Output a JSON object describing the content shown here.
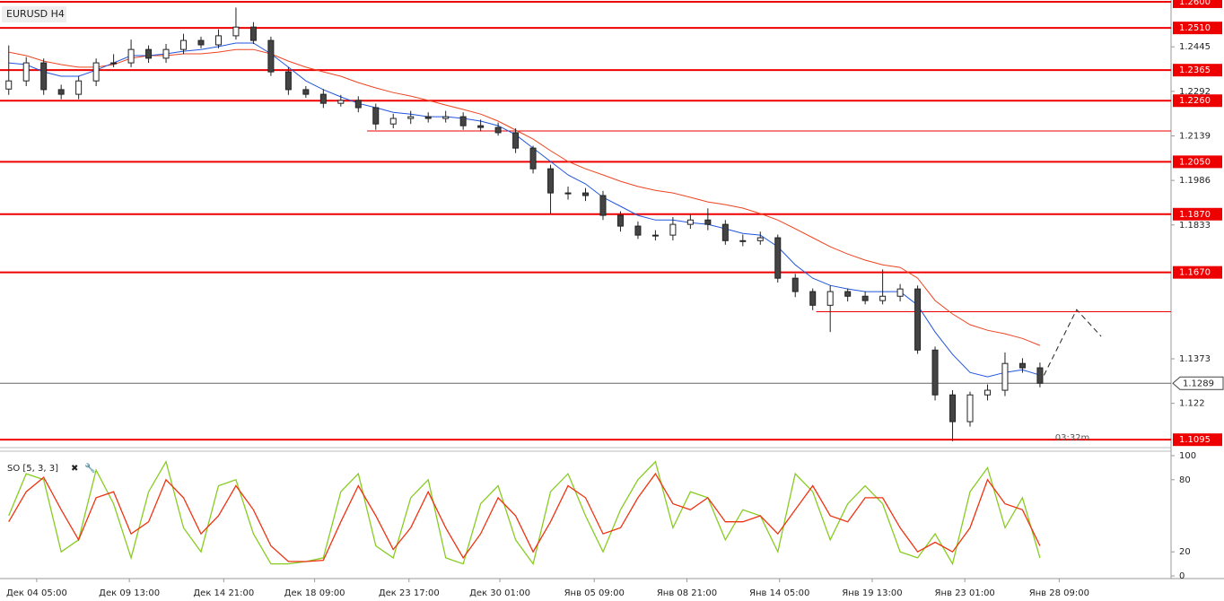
{
  "chart_data": {
    "type": "candlestick",
    "title": "EURUSD H4",
    "x": [
      0,
      1,
      2,
      3,
      4,
      5,
      6,
      7,
      8,
      9,
      10,
      11,
      12,
      13,
      14,
      15,
      16,
      17,
      18,
      19,
      20,
      21,
      22,
      23,
      24,
      25,
      26,
      27,
      28,
      29,
      30,
      31,
      32,
      33,
      34,
      35,
      36,
      37,
      38,
      39,
      40,
      41,
      42,
      43,
      44,
      45,
      46,
      47,
      48,
      49,
      50,
      51,
      52,
      53,
      54,
      55,
      56,
      57,
      58,
      59
    ],
    "open": [
      1.23,
      1.2328,
      1.239,
      1.2298,
      1.2282,
      1.2328,
      1.239,
      1.239,
      1.2436,
      1.2406,
      1.2436,
      1.2467,
      1.2452,
      1.2483,
      1.2513,
      1.2467,
      1.2359,
      1.2298,
      1.2282,
      1.2251,
      1.2261,
      1.2236,
      1.218,
      1.2199,
      1.2205,
      1.2199,
      1.2205,
      1.2174,
      1.2168,
      1.215,
      1.2097,
      1.2026,
      1.1943,
      1.1943,
      1.1934,
      1.1866,
      1.1829,
      1.1798,
      1.1798,
      1.1835,
      1.185,
      1.1835,
      1.1779,
      1.1779,
      1.1789,
      1.165,
      1.1604,
      1.1557,
      1.1604,
      1.1588,
      1.1573,
      1.1588,
      1.1613,
      1.1403,
      1.1249,
      1.1157,
      1.1249,
      1.1265,
      1.1357,
      1.1342
    ],
    "high": [
      1.245,
      1.241,
      1.2405,
      1.2315,
      1.2345,
      1.2405,
      1.242,
      1.247,
      1.245,
      1.2455,
      1.249,
      1.248,
      1.2505,
      1.258,
      1.253,
      1.248,
      1.2375,
      1.231,
      1.23,
      1.228,
      1.2275,
      1.225,
      1.2215,
      1.2225,
      1.222,
      1.2225,
      1.222,
      1.2195,
      1.2185,
      1.2165,
      1.2105,
      1.204,
      1.1965,
      1.196,
      1.195,
      1.188,
      1.1845,
      1.1815,
      1.186,
      1.187,
      1.189,
      1.185,
      1.18,
      1.181,
      1.18,
      1.1665,
      1.1615,
      1.1625,
      1.1615,
      1.1605,
      1.168,
      1.163,
      1.1625,
      1.1415,
      1.1265,
      1.126,
      1.1285,
      1.1395,
      1.1375,
      1.136
    ],
    "low": [
      1.228,
      1.231,
      1.228,
      1.2265,
      1.2265,
      1.231,
      1.2375,
      1.2375,
      1.239,
      1.239,
      1.242,
      1.244,
      1.244,
      1.247,
      1.2455,
      1.2345,
      1.228,
      1.227,
      1.2235,
      1.224,
      1.222,
      1.216,
      1.2165,
      1.218,
      1.2185,
      1.2185,
      1.216,
      1.2155,
      1.214,
      1.208,
      1.201,
      1.187,
      1.192,
      1.1915,
      1.185,
      1.181,
      1.1785,
      1.178,
      1.178,
      1.182,
      1.1815,
      1.1765,
      1.176,
      1.1765,
      1.1635,
      1.1585,
      1.154,
      1.1465,
      1.157,
      1.156,
      1.156,
      1.157,
      1.139,
      1.123,
      1.109,
      1.114,
      1.123,
      1.1245,
      1.1325,
      1.1275
    ],
    "close": [
      1.2328,
      1.239,
      1.2298,
      1.2282,
      1.2328,
      1.239,
      1.239,
      1.2436,
      1.2406,
      1.2436,
      1.2467,
      1.2452,
      1.2483,
      1.2513,
      1.2467,
      1.2359,
      1.2298,
      1.2282,
      1.2251,
      1.2261,
      1.2236,
      1.218,
      1.2199,
      1.2205,
      1.2199,
      1.2205,
      1.2174,
      1.2168,
      1.215,
      1.2097,
      1.2026,
      1.1943,
      1.1943,
      1.1934,
      1.1866,
      1.1829,
      1.1798,
      1.1798,
      1.1835,
      1.185,
      1.1835,
      1.1779,
      1.1779,
      1.1789,
      1.165,
      1.1604,
      1.1557,
      1.1604,
      1.1588,
      1.1573,
      1.1588,
      1.1613,
      1.1403,
      1.1249,
      1.1157,
      1.1249,
      1.1265,
      1.1357,
      1.1342,
      1.1289
    ],
    "ma_fast": {
      "color": "#2255dd",
      "values": [
        1.239,
        1.2384,
        1.2359,
        1.2344,
        1.2344,
        1.2365,
        1.239,
        1.2415,
        1.2415,
        1.2421,
        1.243,
        1.2436,
        1.2446,
        1.2458,
        1.2458,
        1.2421,
        1.2375,
        1.2328,
        1.2298,
        1.2273,
        1.2251,
        1.2236,
        1.222,
        1.2214,
        1.2205,
        1.2205,
        1.2199,
        1.219,
        1.2174,
        1.2143,
        1.2097,
        1.2051,
        1.2005,
        1.1974,
        1.1928,
        1.1897,
        1.1866,
        1.185,
        1.185,
        1.1841,
        1.1835,
        1.182,
        1.1804,
        1.1798,
        1.1758,
        1.1696,
        1.165,
        1.1625,
        1.1613,
        1.1604,
        1.1604,
        1.1604,
        1.1557,
        1.1465,
        1.1388,
        1.1326,
        1.1311,
        1.1326,
        1.1335,
        1.1317
      ]
    },
    "ma_slow": {
      "color": "#ee4422",
      "values": [
        1.2427,
        1.2415,
        1.2396,
        1.2384,
        1.2375,
        1.2375,
        1.2384,
        1.2406,
        1.2415,
        1.2415,
        1.2421,
        1.2421,
        1.2427,
        1.2436,
        1.2436,
        1.2421,
        1.2396,
        1.2375,
        1.2359,
        1.2344,
        1.2322,
        1.2304,
        1.2288,
        1.2276,
        1.2261,
        1.2245,
        1.223,
        1.2214,
        1.219,
        1.2159,
        1.2128,
        1.2088,
        1.2051,
        1.2026,
        1.2005,
        1.1983,
        1.1965,
        1.1952,
        1.1943,
        1.1928,
        1.1912,
        1.1903,
        1.1891,
        1.1872,
        1.185,
        1.182,
        1.1789,
        1.1758,
        1.1733,
        1.1712,
        1.1696,
        1.1687,
        1.165,
        1.1573,
        1.1527,
        1.149,
        1.1471,
        1.1459,
        1.1443,
        1.1419
      ]
    },
    "forecast": {
      "x": [
        59,
        61.1,
        62.5
      ],
      "values": [
        1.1289,
        1.1542,
        1.145
      ]
    },
    "levels": [
      {
        "value": 1.26,
        "label": "1.2600"
      },
      {
        "value": 1.251,
        "label": "1.2510"
      },
      {
        "value": 1.2365,
        "label": "1.2365"
      },
      {
        "value": 1.226,
        "label": "1.2260"
      },
      {
        "value": 1.205,
        "label": "1.2050"
      },
      {
        "value": 1.187,
        "label": "1.1870"
      },
      {
        "value": 1.167,
        "label": "1.1670"
      },
      {
        "value": 1.1095,
        "label": "1.1095"
      }
    ],
    "short_levels": [
      {
        "value": 1.2156,
        "from": 20.5
      },
      {
        "value": 1.1535,
        "from": 46.2
      }
    ],
    "current_price": 1.1289,
    "timer": "03:32m",
    "xlim": [
      -0.5,
      66.5
    ],
    "ylim": [
      1.1074,
      1.2606
    ],
    "yticks": [
      1.2445,
      1.2292,
      1.2139,
      1.1986,
      1.1833,
      1.1373,
      1.122
    ],
    "xticks": [
      {
        "value": 1.6,
        "label": "Дек 04 05:00"
      },
      {
        "value": 6.9,
        "label": "Дек 09 13:00"
      },
      {
        "value": 12.3,
        "label": "Дек 14 21:00"
      },
      {
        "value": 17.5,
        "label": "Дек 18 09:00"
      },
      {
        "value": 22.9,
        "label": "Дек 23 17:00"
      },
      {
        "value": 28.1,
        "label": "Дек 30 01:00"
      },
      {
        "value": 33.5,
        "label": "Янв 05 09:00"
      },
      {
        "value": 38.8,
        "label": "Янв 08 21:00"
      },
      {
        "value": 44.1,
        "label": "Янв 14 05:00"
      },
      {
        "value": 49.4,
        "label": "Янв 19 13:00"
      },
      {
        "value": 54.7,
        "label": "Янв 23 01:00"
      },
      {
        "value": 60.1,
        "label": "Янв 28 09:00"
      }
    ],
    "oscillator": {
      "title": "SO [5, 3, 3]",
      "ylim": [
        -2.2,
        103.7
      ],
      "yticks": [
        100,
        80,
        20,
        0
      ],
      "k": {
        "color": "#88cc22",
        "values": [
          50,
          85,
          80,
          20,
          30,
          88,
          60,
          15,
          70,
          95,
          40,
          20,
          75,
          80,
          35,
          10,
          10,
          12,
          15,
          70,
          85,
          25,
          15,
          65,
          80,
          15,
          10,
          60,
          75,
          30,
          10,
          70,
          85,
          50,
          20,
          55,
          80,
          95,
          40,
          70,
          65,
          30,
          55,
          50,
          20,
          85,
          70,
          30,
          60,
          75,
          60,
          20,
          15,
          35,
          10,
          70,
          90,
          40,
          65,
          15
        ]
      },
      "d": {
        "color": "#ee3311",
        "values": [
          45,
          70,
          82,
          55,
          30,
          65,
          70,
          35,
          45,
          80,
          65,
          35,
          50,
          75,
          55,
          25,
          12,
          12,
          13,
          45,
          75,
          50,
          22,
          40,
          70,
          40,
          15,
          35,
          65,
          50,
          20,
          45,
          75,
          65,
          35,
          40,
          65,
          85,
          60,
          55,
          65,
          45,
          45,
          50,
          35,
          55,
          75,
          50,
          45,
          65,
          65,
          40,
          20,
          28,
          20,
          40,
          80,
          60,
          55,
          25
        ]
      }
    }
  }
}
